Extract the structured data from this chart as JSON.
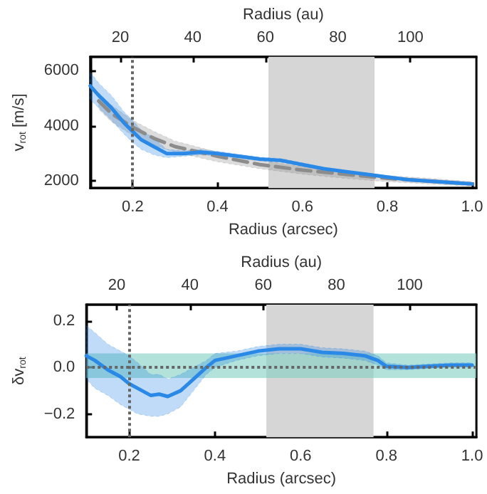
{
  "chart_data": [
    {
      "type": "line",
      "xlabel": "Radius (arcsec)",
      "ylabel": "v$_{rot}$ [m/s]",
      "x2label": "Radius (au)",
      "xlim": [
        0.1,
        1.01
      ],
      "xticks": [
        0.2,
        0.4,
        0.6,
        0.8,
        {
          "value": 1.0,
          "label": "1.0"
        }
      ],
      "x2lim": [
        11.7,
        118.2
      ],
      "x2ticks": [
        20,
        40,
        60,
        80,
        100
      ],
      "ylim": [
        1750,
        6500
      ],
      "yticks": [
        2000,
        4000,
        6000
      ],
      "bands": [
        {
          "axis": "x",
          "from": 0.52,
          "to": 0.77,
          "color": "#d6d6d6"
        }
      ],
      "ref_lines": [
        {
          "axis": "x",
          "value": 0.2,
          "color": "#666666",
          "line_style": "dotted"
        }
      ],
      "series": [
        {
          "color": "#8c8c8c",
          "line_style": "dashed",
          "x": [
            0.12,
            0.15,
            0.2,
            0.25,
            0.3,
            0.4,
            0.5,
            0.6,
            0.7,
            0.8,
            0.9,
            1.0
          ],
          "values": [
            4900,
            4450,
            3950,
            3550,
            3250,
            2900,
            2600,
            2400,
            2250,
            2100,
            2000,
            1900
          ],
          "lower": [
            4600,
            4150,
            3650,
            3300,
            3050,
            2700,
            2450,
            2250,
            2100,
            1980,
            1900,
            1820
          ],
          "upper": [
            5200,
            4750,
            4200,
            3800,
            3450,
            3050,
            2750,
            2530,
            2380,
            2200,
            2100,
            1980
          ]
        },
        {
          "color": "#2a88e6",
          "line_style": "solid",
          "x": [
            0.1,
            0.12,
            0.15,
            0.18,
            0.2,
            0.22,
            0.25,
            0.28,
            0.32,
            0.36,
            0.4,
            0.45,
            0.5,
            0.55,
            0.6,
            0.65,
            0.7,
            0.75,
            0.8,
            0.85,
            0.9,
            0.95,
            1.0
          ],
          "values": [
            5450,
            5100,
            4650,
            4100,
            3800,
            3500,
            3250,
            3000,
            3000,
            3050,
            3000,
            2900,
            2800,
            2750,
            2600,
            2450,
            2350,
            2250,
            2150,
            2050,
            2000,
            1950,
            1900
          ],
          "lower": [
            4950,
            4650,
            4200,
            3700,
            3400,
            3150,
            2950,
            2850,
            2900,
            2950,
            2920,
            2830,
            2730,
            2680,
            2540,
            2400,
            2300,
            2200,
            2100,
            2010,
            1960,
            1910,
            1860
          ],
          "upper": [
            5950,
            5550,
            5100,
            4500,
            4200,
            3850,
            3550,
            3150,
            3100,
            3150,
            3080,
            2970,
            2870,
            2820,
            2660,
            2500,
            2400,
            2300,
            2200,
            2090,
            2040,
            1990,
            1940
          ]
        }
      ]
    },
    {
      "type": "line",
      "xlabel": "Radius (arcsec)",
      "ylabel": "δv$_{rot}$",
      "x2label": "Radius (au)",
      "xlim": [
        0.1,
        1.01
      ],
      "xticks": [
        0.2,
        0.4,
        0.6,
        0.8,
        {
          "value": 1.0,
          "label": "1.0"
        }
      ],
      "x2lim": [
        11.7,
        118.2
      ],
      "x2ticks": [
        20,
        40,
        60,
        80,
        100
      ],
      "ylim": [
        -0.3,
        0.27
      ],
      "yticks": [
        {
          "value": -0.2,
          "label": "−0.2"
        },
        {
          "value": 0,
          "label": "0.0"
        },
        0.2
      ],
      "bands": [
        {
          "axis": "x",
          "from": 0.52,
          "to": 0.77,
          "color": "#d6d6d6"
        },
        {
          "axis": "y",
          "from": -0.045,
          "to": 0.06,
          "color": "#7fcfc0"
        }
      ],
      "ref_lines": [
        {
          "axis": "x",
          "value": 0.2,
          "color": "#666666",
          "line_style": "dotted"
        },
        {
          "axis": "y",
          "value": 0,
          "color": "#666666",
          "line_style": "dotted"
        }
      ],
      "series": [
        {
          "color": "#2a88e6",
          "line_style": "solid",
          "x": [
            0.1,
            0.12,
            0.15,
            0.18,
            0.2,
            0.22,
            0.25,
            0.27,
            0.29,
            0.32,
            0.35,
            0.38,
            0.4,
            0.45,
            0.5,
            0.55,
            0.6,
            0.65,
            0.7,
            0.75,
            0.78,
            0.8,
            0.85,
            0.9,
            0.95,
            1.0
          ],
          "values": [
            0.05,
            0.03,
            -0.01,
            -0.04,
            -0.07,
            -0.09,
            -0.12,
            -0.115,
            -0.125,
            -0.1,
            -0.05,
            0.0,
            0.03,
            0.05,
            0.07,
            0.08,
            0.08,
            0.065,
            0.06,
            0.05,
            0.03,
            0.005,
            0.0,
            0.005,
            0.01,
            0.01
          ],
          "lower": [
            -0.05,
            -0.09,
            -0.12,
            -0.16,
            -0.18,
            -0.2,
            -0.21,
            -0.21,
            -0.2,
            -0.17,
            -0.1,
            -0.03,
            0.0,
            0.03,
            0.05,
            0.06,
            0.06,
            0.045,
            0.04,
            0.03,
            0.01,
            -0.01,
            -0.01,
            -0.005,
            0.0,
            0.0
          ],
          "upper": [
            0.18,
            0.15,
            0.1,
            0.07,
            0.05,
            0.02,
            -0.03,
            -0.03,
            -0.05,
            -0.03,
            0.0,
            0.03,
            0.06,
            0.07,
            0.09,
            0.1,
            0.1,
            0.085,
            0.08,
            0.07,
            0.05,
            0.02,
            0.01,
            0.015,
            0.02,
            0.02
          ]
        }
      ]
    }
  ]
}
